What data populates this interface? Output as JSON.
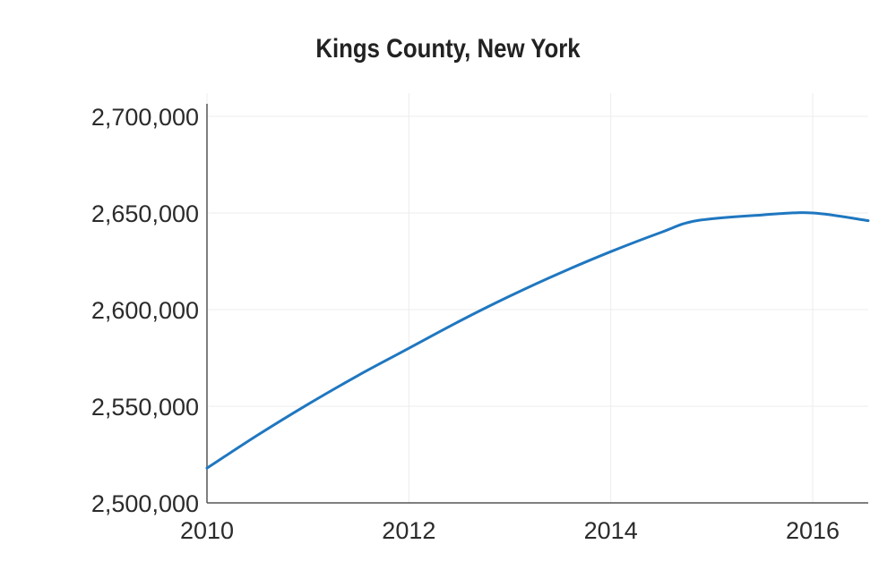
{
  "chart_data": {
    "type": "line",
    "title": "Kings County, New York",
    "xlabel": "",
    "ylabel": "",
    "xlim": [
      2010,
      2016.55
    ],
    "ylim": [
      2500000,
      2700000
    ],
    "x_ticks": [
      2010,
      2012,
      2014,
      2016
    ],
    "x_tick_labels": [
      "2010",
      "2012",
      "2014",
      "2016"
    ],
    "y_ticks": [
      2500000,
      2550000,
      2600000,
      2650000,
      2700000
    ],
    "y_tick_labels": [
      "2,500,000",
      "2,550,000",
      "2,600,000",
      "2,650,000",
      "2,700,000"
    ],
    "grid": true,
    "series": [
      {
        "color": "#1f77c0",
        "x": [
          2010.0,
          2010.5,
          2011.0,
          2011.5,
          2012.0,
          2012.5,
          2013.0,
          2013.5,
          2014.0,
          2014.5,
          2014.85,
          2015.5,
          2016.0,
          2016.55
        ],
        "y": [
          2518000,
          2535000,
          2551000,
          2566000,
          2580000,
          2594000,
          2607000,
          2619000,
          2630000,
          2640000,
          2646000,
          2649000,
          2650000,
          2646000
        ]
      }
    ]
  }
}
